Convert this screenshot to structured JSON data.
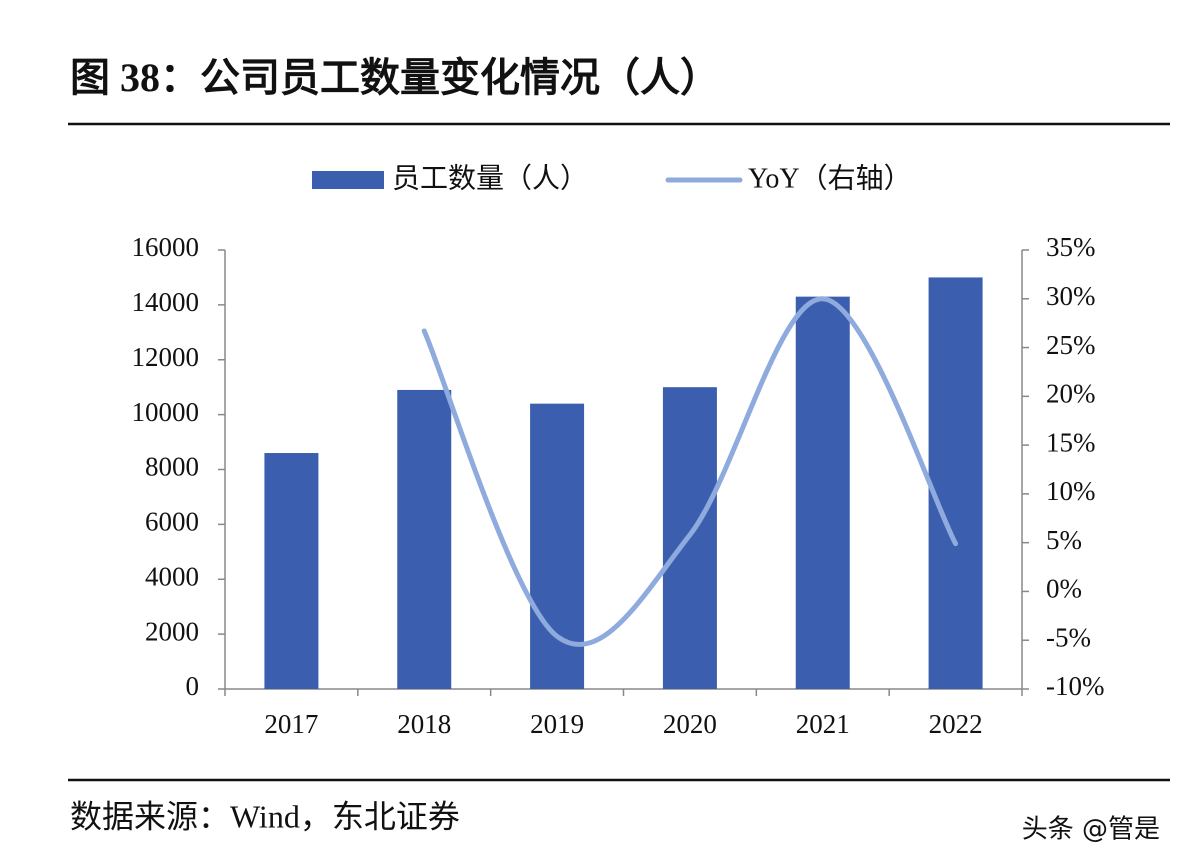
{
  "chart_data": {
    "type": "bar-line",
    "title": "图 38：公司员工数量变化情况（人）",
    "source": "数据来源：Wind，东北证券",
    "watermark": "头条 @管是",
    "categories": [
      "2017",
      "2018",
      "2019",
      "2020",
      "2021",
      "2022"
    ],
    "series": [
      {
        "name": "员工数量（人）",
        "type": "bar",
        "color": "#3b5fae",
        "values": [
          8600,
          10900,
          10400,
          11000,
          14300,
          15000
        ]
      },
      {
        "name": "YoY（右轴）",
        "type": "line",
        "axis": "y2",
        "color": "#8faadc",
        "values": [
          null,
          26.7,
          -4.6,
          5.8,
          30.0,
          4.9
        ]
      }
    ],
    "ylim": [
      0,
      16000
    ],
    "yticks": [
      0,
      2000,
      4000,
      6000,
      8000,
      10000,
      12000,
      14000,
      16000
    ],
    "y2lim": [
      -10,
      35
    ],
    "y2ticks": [
      {
        "value": -10,
        "label": "-10%"
      },
      {
        "value": -5,
        "label": "-5%"
      },
      {
        "value": 0,
        "label": "0%"
      },
      {
        "value": 5,
        "label": "5%"
      },
      {
        "value": 10,
        "label": "10%"
      },
      {
        "value": 15,
        "label": "15%"
      },
      {
        "value": 20,
        "label": "20%"
      },
      {
        "value": 25,
        "label": "25%"
      },
      {
        "value": 30,
        "label": "30%"
      },
      {
        "value": 35,
        "label": "35%"
      }
    ],
    "legend": "top",
    "grid": false
  }
}
